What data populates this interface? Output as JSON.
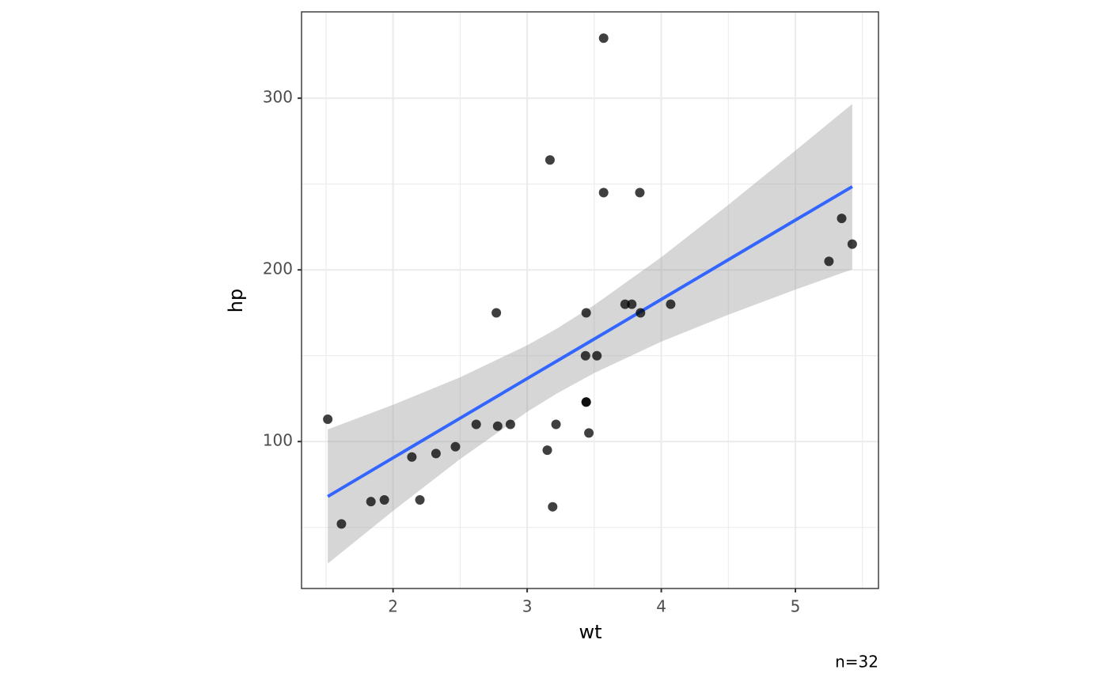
{
  "chart_data": {
    "type": "scatter",
    "x_label": "wt",
    "y_label": "hp",
    "caption": "n=32",
    "xlim": [
      1.31745,
      5.61955
    ],
    "ylim": [
      14.4,
      350.3
    ],
    "xticks": [
      2,
      3,
      4,
      5
    ],
    "yticks": [
      100,
      200,
      300
    ],
    "xminor": [
      1.5,
      2.5,
      3.5,
      4.5,
      5.5
    ],
    "yminor": [
      50,
      150,
      250
    ],
    "grid": true,
    "color": "#000000",
    "x": [
      2.62,
      2.875,
      2.32,
      3.215,
      3.44,
      3.46,
      3.57,
      3.19,
      3.15,
      3.44,
      3.44,
      4.07,
      3.73,
      3.78,
      5.25,
      5.424,
      5.345,
      2.2,
      1.615,
      1.835,
      2.465,
      3.52,
      3.435,
      3.84,
      3.845,
      1.935,
      2.14,
      1.513,
      3.17,
      2.77,
      3.57,
      2.78
    ],
    "values": [
      110,
      110,
      93,
      110,
      175,
      105,
      245,
      62,
      95,
      123,
      123,
      180,
      180,
      180,
      205,
      215,
      230,
      66,
      52,
      65,
      97,
      150,
      150,
      245,
      175,
      66,
      91,
      113,
      264,
      175,
      335,
      109
    ],
    "smooth": {
      "line_color": "#3366ff",
      "band_color": "#999999",
      "x": [
        1.513,
        2,
        2.5,
        3,
        3.217,
        3.5,
        4,
        4.5,
        5,
        5.424
      ],
      "fit": [
        68.0,
        90.5,
        113.6,
        136.7,
        146.7,
        159.7,
        182.8,
        205.9,
        229.0,
        248.5
      ],
      "lower": [
        28.9,
        59.6,
        89.8,
        117.3,
        127.8,
        139.9,
        158.2,
        173.9,
        188.5,
        200.3
      ],
      "upper": [
        107.1,
        121.4,
        137.4,
        156.1,
        165.6,
        179.5,
        207.4,
        237.9,
        269.5,
        296.7
      ]
    }
  }
}
